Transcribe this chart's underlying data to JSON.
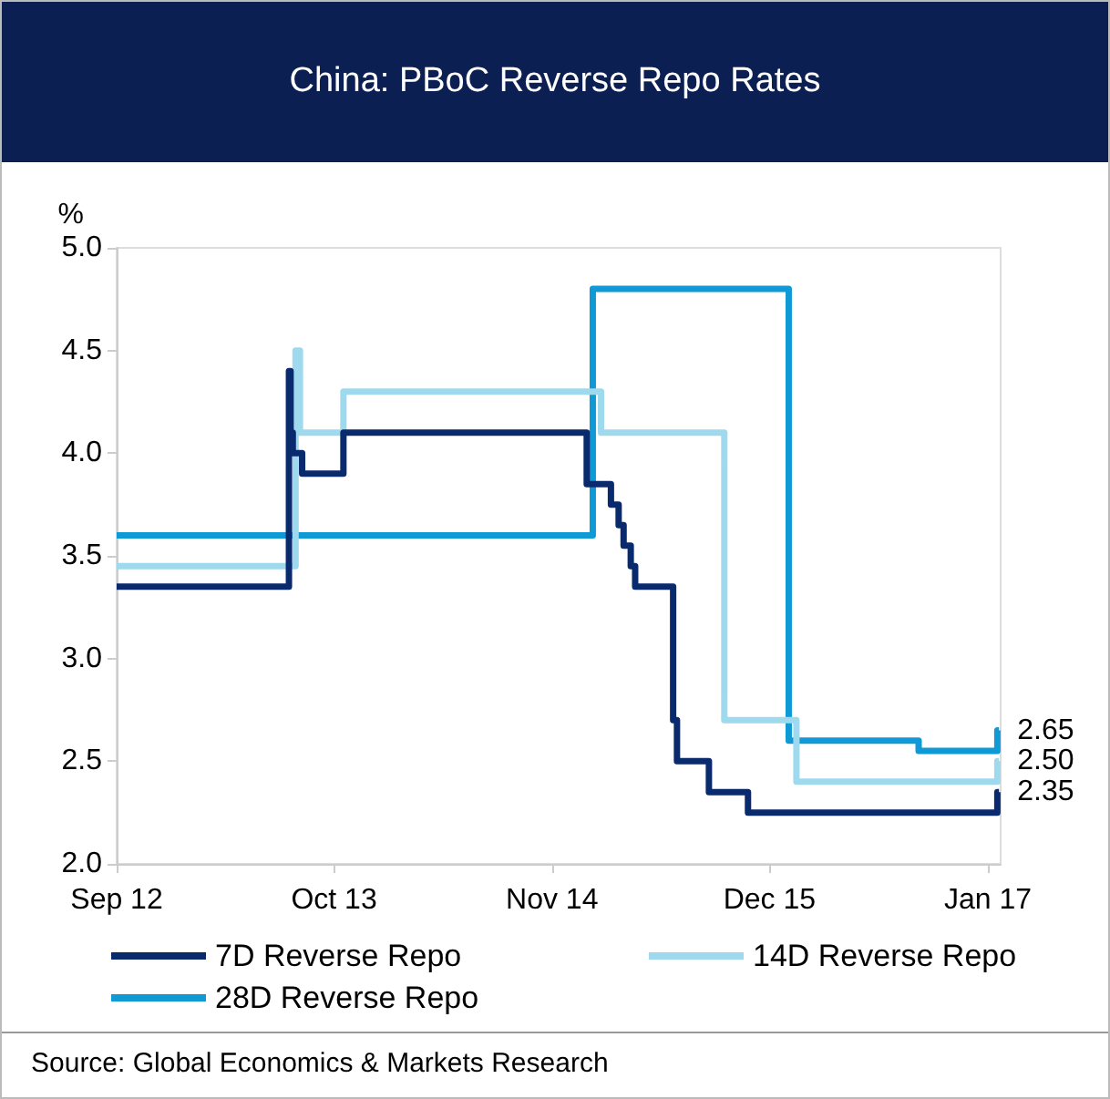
{
  "chart_data": {
    "type": "step",
    "title": "China: PBoC Reverse Repo Rates",
    "ylabel": "%",
    "xlim": [
      "2012-09-01",
      "2017-01-24"
    ],
    "xticks": [
      {
        "value": "2012-09-01",
        "label": "Sep 12"
      },
      {
        "value": "2013-10-01",
        "label": "Oct 13"
      },
      {
        "value": "2014-11-01",
        "label": "Nov 14"
      },
      {
        "value": "2015-12-01",
        "label": "Dec 15"
      },
      {
        "value": "2017-01-01",
        "label": "Jan 17"
      }
    ],
    "ylim": [
      2,
      5
    ],
    "yticks": [
      {
        "value": 2,
        "label": "2.0"
      },
      {
        "value": 2.5,
        "label": "2.5"
      },
      {
        "value": 3,
        "label": "3.0"
      },
      {
        "value": 3.5,
        "label": "3.5"
      },
      {
        "value": 4,
        "label": "4.0"
      },
      {
        "value": 4.5,
        "label": "4.5"
      },
      {
        "value": 5,
        "label": "5.0"
      }
    ],
    "grid": false,
    "legend": "bottom",
    "marker": "none",
    "line_style": "solid",
    "series": [
      {
        "name": "7D Reverse Repo",
        "color": "#0a2a6e",
        "x": [
          "2012-09-01",
          "2013-07-11",
          "2013-07-14",
          "2013-07-18",
          "2013-08-04",
          "2013-10-18",
          "2015-01-03",
          "2015-02-16",
          "2015-03-02",
          "2015-03-11",
          "2015-03-24",
          "2015-04-01",
          "2015-06-09",
          "2015-06-16",
          "2015-08-13",
          "2015-10-23",
          "2017-01-18",
          "2017-01-21"
        ],
        "values": [
          3.35,
          4.4,
          4.1,
          4.0,
          3.9,
          4.1,
          3.85,
          3.75,
          3.65,
          3.55,
          3.45,
          3.35,
          2.7,
          2.5,
          2.35,
          2.25,
          2.35,
          2.35
        ]
      },
      {
        "name": "14D Reverse Repo",
        "color": "#9fd9ee",
        "x": [
          "2012-09-01",
          "2013-07-23",
          "2013-07-31",
          "2013-10-18",
          "2015-01-29",
          "2015-09-10",
          "2016-01-19",
          "2017-01-18",
          "2017-01-21"
        ],
        "values": [
          3.45,
          4.5,
          4.1,
          4.3,
          4.1,
          2.7,
          2.4,
          2.5,
          2.5
        ]
      },
      {
        "name": "28D Reverse Repo",
        "color": "#0f9ad6",
        "x": [
          "2012-09-01",
          "2015-01-14",
          "2016-01-05",
          "2016-08-28",
          "2017-01-18",
          "2017-01-21"
        ],
        "values": [
          3.6,
          4.8,
          2.6,
          2.55,
          2.65,
          2.65
        ]
      }
    ],
    "annotations": [
      {
        "text": "2.65",
        "x": "2017-01-21",
        "y": 2.65
      },
      {
        "text": "2.50",
        "x": "2017-01-21",
        "y": 2.5
      },
      {
        "text": "2.35",
        "x": "2017-01-21",
        "y": 2.35
      },
      "Source: Global Economics & Markets Research"
    ]
  }
}
